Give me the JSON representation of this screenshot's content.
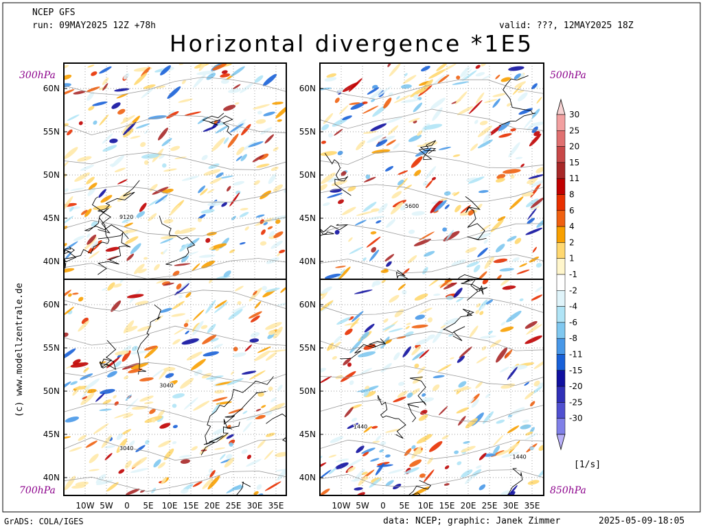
{
  "header": {
    "model": "NCEP GFS",
    "run": "run: 09MAY2025 12Z +78h",
    "valid": "valid: ???, 12MAY2025 18Z",
    "title": "Horizontal divergence *1E5"
  },
  "panels": [
    {
      "level": "300hPa",
      "contour_labels": [
        "9120"
      ]
    },
    {
      "level": "500hPa",
      "contour_labels": [
        "5600"
      ]
    },
    {
      "level": "700hPa",
      "contour_labels": [
        "3040",
        "3040"
      ]
    },
    {
      "level": "850hPa",
      "contour_labels": [
        "1440",
        "1440"
      ]
    }
  ],
  "lat_labels": [
    "60N",
    "55N",
    "50N",
    "45N",
    "40N"
  ],
  "lon_labels": [
    "10W",
    "5W",
    "0",
    "5E",
    "10E",
    "15E",
    "20E",
    "25E",
    "30E",
    "35E"
  ],
  "colorbar": {
    "unit": "[1/s]",
    "labels": [
      "30",
      "25",
      "20",
      "15",
      "11",
      "8",
      "6",
      "4",
      "2",
      "1",
      "-1",
      "-2",
      "-4",
      "-6",
      "-8",
      "-11",
      "-15",
      "-20",
      "-25",
      "-30"
    ],
    "colors": [
      "#f6d2d2",
      "#f2a0a0",
      "#e07070",
      "#c84848",
      "#a82828",
      "#c00000",
      "#e83000",
      "#f06010",
      "#f8a000",
      "#ffd870",
      "#fff6cc",
      "#ffffff",
      "#e0f4fa",
      "#b0e4f6",
      "#80c8f0",
      "#4898e8",
      "#1860d8",
      "#1010a0",
      "#3030b8",
      "#5050d0",
      "#8080e8",
      "#b8b0f8"
    ]
  },
  "credit": "(c) www.modellzentrale.de",
  "footer": {
    "left": "GrADS: COLA/IGES",
    "center": "data: NCEP; graphic: Janek Zimmer",
    "right": "2025-05-09-18:05"
  }
}
